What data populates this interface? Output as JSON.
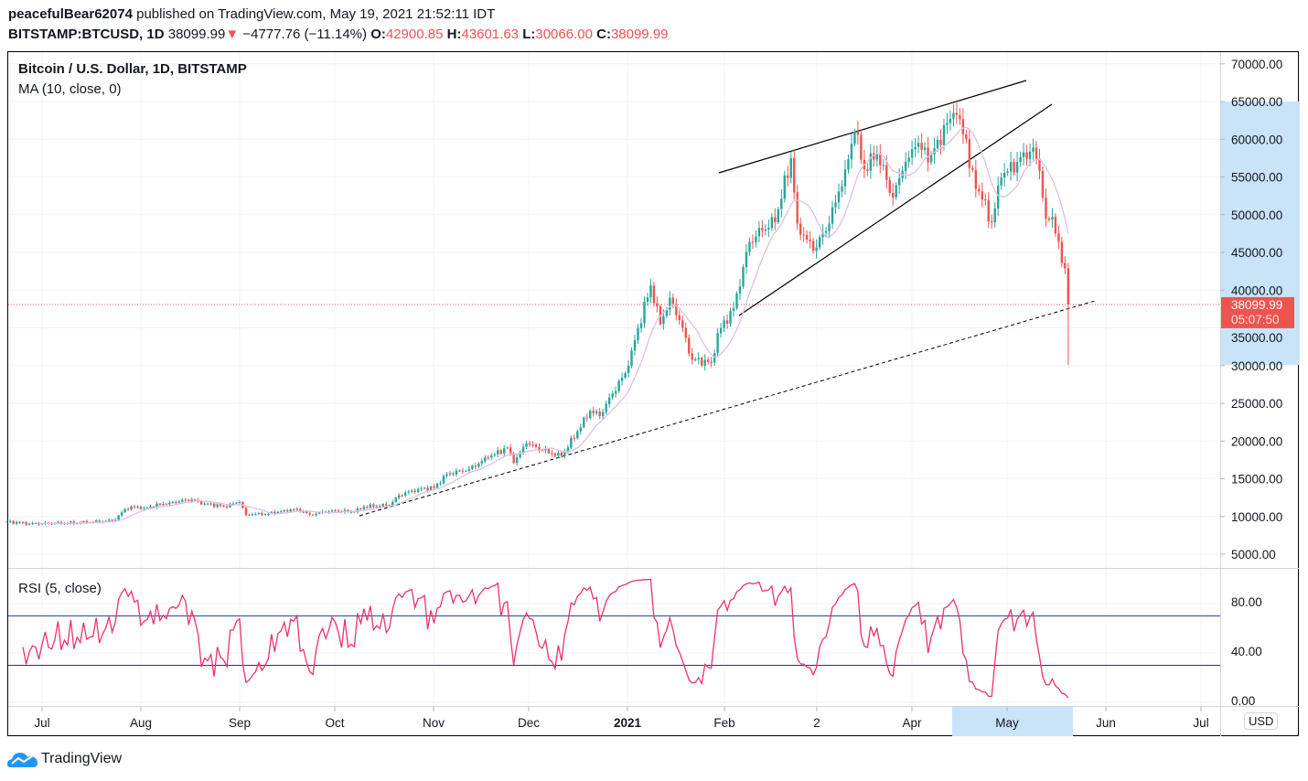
{
  "header": {
    "publisher": "peacefulBear62074",
    "published_text": "published on TradingView.com, May 19, 2021 21:52:11 IDT",
    "symbol": "BITSTAMP:BTCUSD, 1D",
    "last": "38099.99",
    "change": "−4777.76 (−11.14%)",
    "o_label": "O:",
    "o": "42900.85",
    "h_label": "H:",
    "h": "43601.63",
    "l_label": "L:",
    "l": "30066.00",
    "c_label": "C:",
    "c": "38099.99"
  },
  "legend": {
    "title": "Bitcoin / U.S. Dollar, 1D, BITSTAMP",
    "ma": "MA (10, close, 0)",
    "rsi": "RSI (5, close)"
  },
  "price_axis": {
    "currency": "USD",
    "ticks": [
      "70000.00",
      "65000.00",
      "60000.00",
      "55000.00",
      "50000.00",
      "45000.00",
      "40000.00",
      "35000.00",
      "30000.00",
      "25000.00",
      "20000.00",
      "15000.00",
      "10000.00",
      "5000.00"
    ],
    "last_price_label": "38099.99",
    "countdown": "05:07:50"
  },
  "rsi_axis": {
    "ticks": [
      "80.00",
      "40.00",
      "0.00"
    ]
  },
  "time_axis": {
    "labels": [
      "Jul",
      "Aug",
      "Sep",
      "Oct",
      "Nov",
      "Dec",
      "2021",
      "Feb",
      "2",
      "Apr",
      "May",
      "Jun",
      "Jul"
    ]
  },
  "footer": {
    "brand": "TradingView"
  },
  "colors": {
    "up": "#26a69a",
    "down": "#ef5350",
    "ma": "#e1bee7",
    "rsi": "#f0306a",
    "upper_band": "#1e4ab0",
    "lower_band": "#3c22a0",
    "highlight": "#c9e3f8"
  },
  "chart_data": {
    "type": "candlestick",
    "symbol": "BTCUSD",
    "interval": "1D",
    "ylim": [
      5000,
      70000
    ],
    "indicators": [
      {
        "name": "MA",
        "period": 10
      },
      {
        "name": "RSI",
        "period": 5,
        "bands": [
          30,
          70
        ],
        "ylim": [
          0,
          100
        ]
      }
    ],
    "last_candle": {
      "date": "2021-05-19",
      "open": 42900.85,
      "high": 43601.63,
      "low": 30066.0,
      "close": 38099.99
    },
    "close_keypoints": [
      [
        "2020-06-20",
        9300
      ],
      [
        "2020-06-27",
        9050
      ],
      [
        "2020-07-05",
        9100
      ],
      [
        "2020-07-15",
        9200
      ],
      [
        "2020-07-21",
        9400
      ],
      [
        "2020-07-24",
        9550
      ],
      [
        "2020-07-27",
        11000
      ],
      [
        "2020-07-31",
        11300
      ],
      [
        "2020-08-02",
        11100
      ],
      [
        "2020-08-10",
        11850
      ],
      [
        "2020-08-17",
        12250
      ],
      [
        "2020-08-21",
        11700
      ],
      [
        "2020-08-27",
        11350
      ],
      [
        "2020-09-01",
        11900
      ],
      [
        "2020-09-03",
        10200
      ],
      [
        "2020-09-05",
        10300
      ],
      [
        "2020-09-10",
        10350
      ],
      [
        "2020-09-15",
        10800
      ],
      [
        "2020-09-19",
        11000
      ],
      [
        "2020-09-23",
        10250
      ],
      [
        "2020-09-30",
        10800
      ],
      [
        "2020-10-07",
        10600
      ],
      [
        "2020-10-10",
        11300
      ],
      [
        "2020-10-18",
        11500
      ],
      [
        "2020-10-21",
        12800
      ],
      [
        "2020-10-27",
        13650
      ],
      [
        "2020-11-01",
        13800
      ],
      [
        "2020-11-05",
        15600
      ],
      [
        "2020-11-12",
        16300
      ],
      [
        "2020-11-18",
        17800
      ],
      [
        "2020-11-24",
        19150
      ],
      [
        "2020-11-26",
        17100
      ],
      [
        "2020-11-30",
        19700
      ],
      [
        "2020-12-08",
        18300
      ],
      [
        "2020-12-11",
        18000
      ],
      [
        "2020-12-16",
        21300
      ],
      [
        "2020-12-20",
        24000
      ],
      [
        "2020-12-23",
        23300
      ],
      [
        "2020-12-27",
        26300
      ],
      [
        "2020-12-31",
        29000
      ],
      [
        "2021-01-02",
        32000
      ],
      [
        "2021-01-08",
        40600
      ],
      [
        "2021-01-11",
        35500
      ],
      [
        "2021-01-14",
        39000
      ],
      [
        "2021-01-17",
        36000
      ],
      [
        "2021-01-21",
        30800
      ],
      [
        "2021-01-27",
        30400
      ],
      [
        "2021-01-29",
        34300
      ],
      [
        "2021-02-03",
        37600
      ],
      [
        "2021-02-08",
        46400
      ],
      [
        "2021-02-12",
        47900
      ],
      [
        "2021-02-16",
        49000
      ],
      [
        "2021-02-21",
        57500
      ],
      [
        "2021-02-23",
        48800
      ],
      [
        "2021-02-28",
        45200
      ],
      [
        "2021-03-05",
        48800
      ],
      [
        "2021-03-10",
        56000
      ],
      [
        "2021-03-13",
        61000
      ],
      [
        "2021-03-16",
        56000
      ],
      [
        "2021-03-20",
        58100
      ],
      [
        "2021-03-25",
        52300
      ],
      [
        "2021-03-28",
        55800
      ],
      [
        "2021-04-01",
        59000
      ],
      [
        "2021-04-06",
        58000
      ],
      [
        "2021-04-13",
        63500
      ],
      [
        "2021-04-14",
        63200
      ],
      [
        "2021-04-17",
        60000
      ],
      [
        "2021-04-18",
        56200
      ],
      [
        "2021-04-25",
        49000
      ],
      [
        "2021-04-28",
        54900
      ],
      [
        "2021-05-03",
        57000
      ],
      [
        "2021-05-08",
        58900
      ],
      [
        "2021-05-10",
        55800
      ],
      [
        "2021-05-12",
        49500
      ],
      [
        "2021-05-14",
        49700
      ],
      [
        "2021-05-16",
        46400
      ],
      [
        "2021-05-17",
        43600
      ],
      [
        "2021-05-18",
        42900
      ]
    ]
  }
}
